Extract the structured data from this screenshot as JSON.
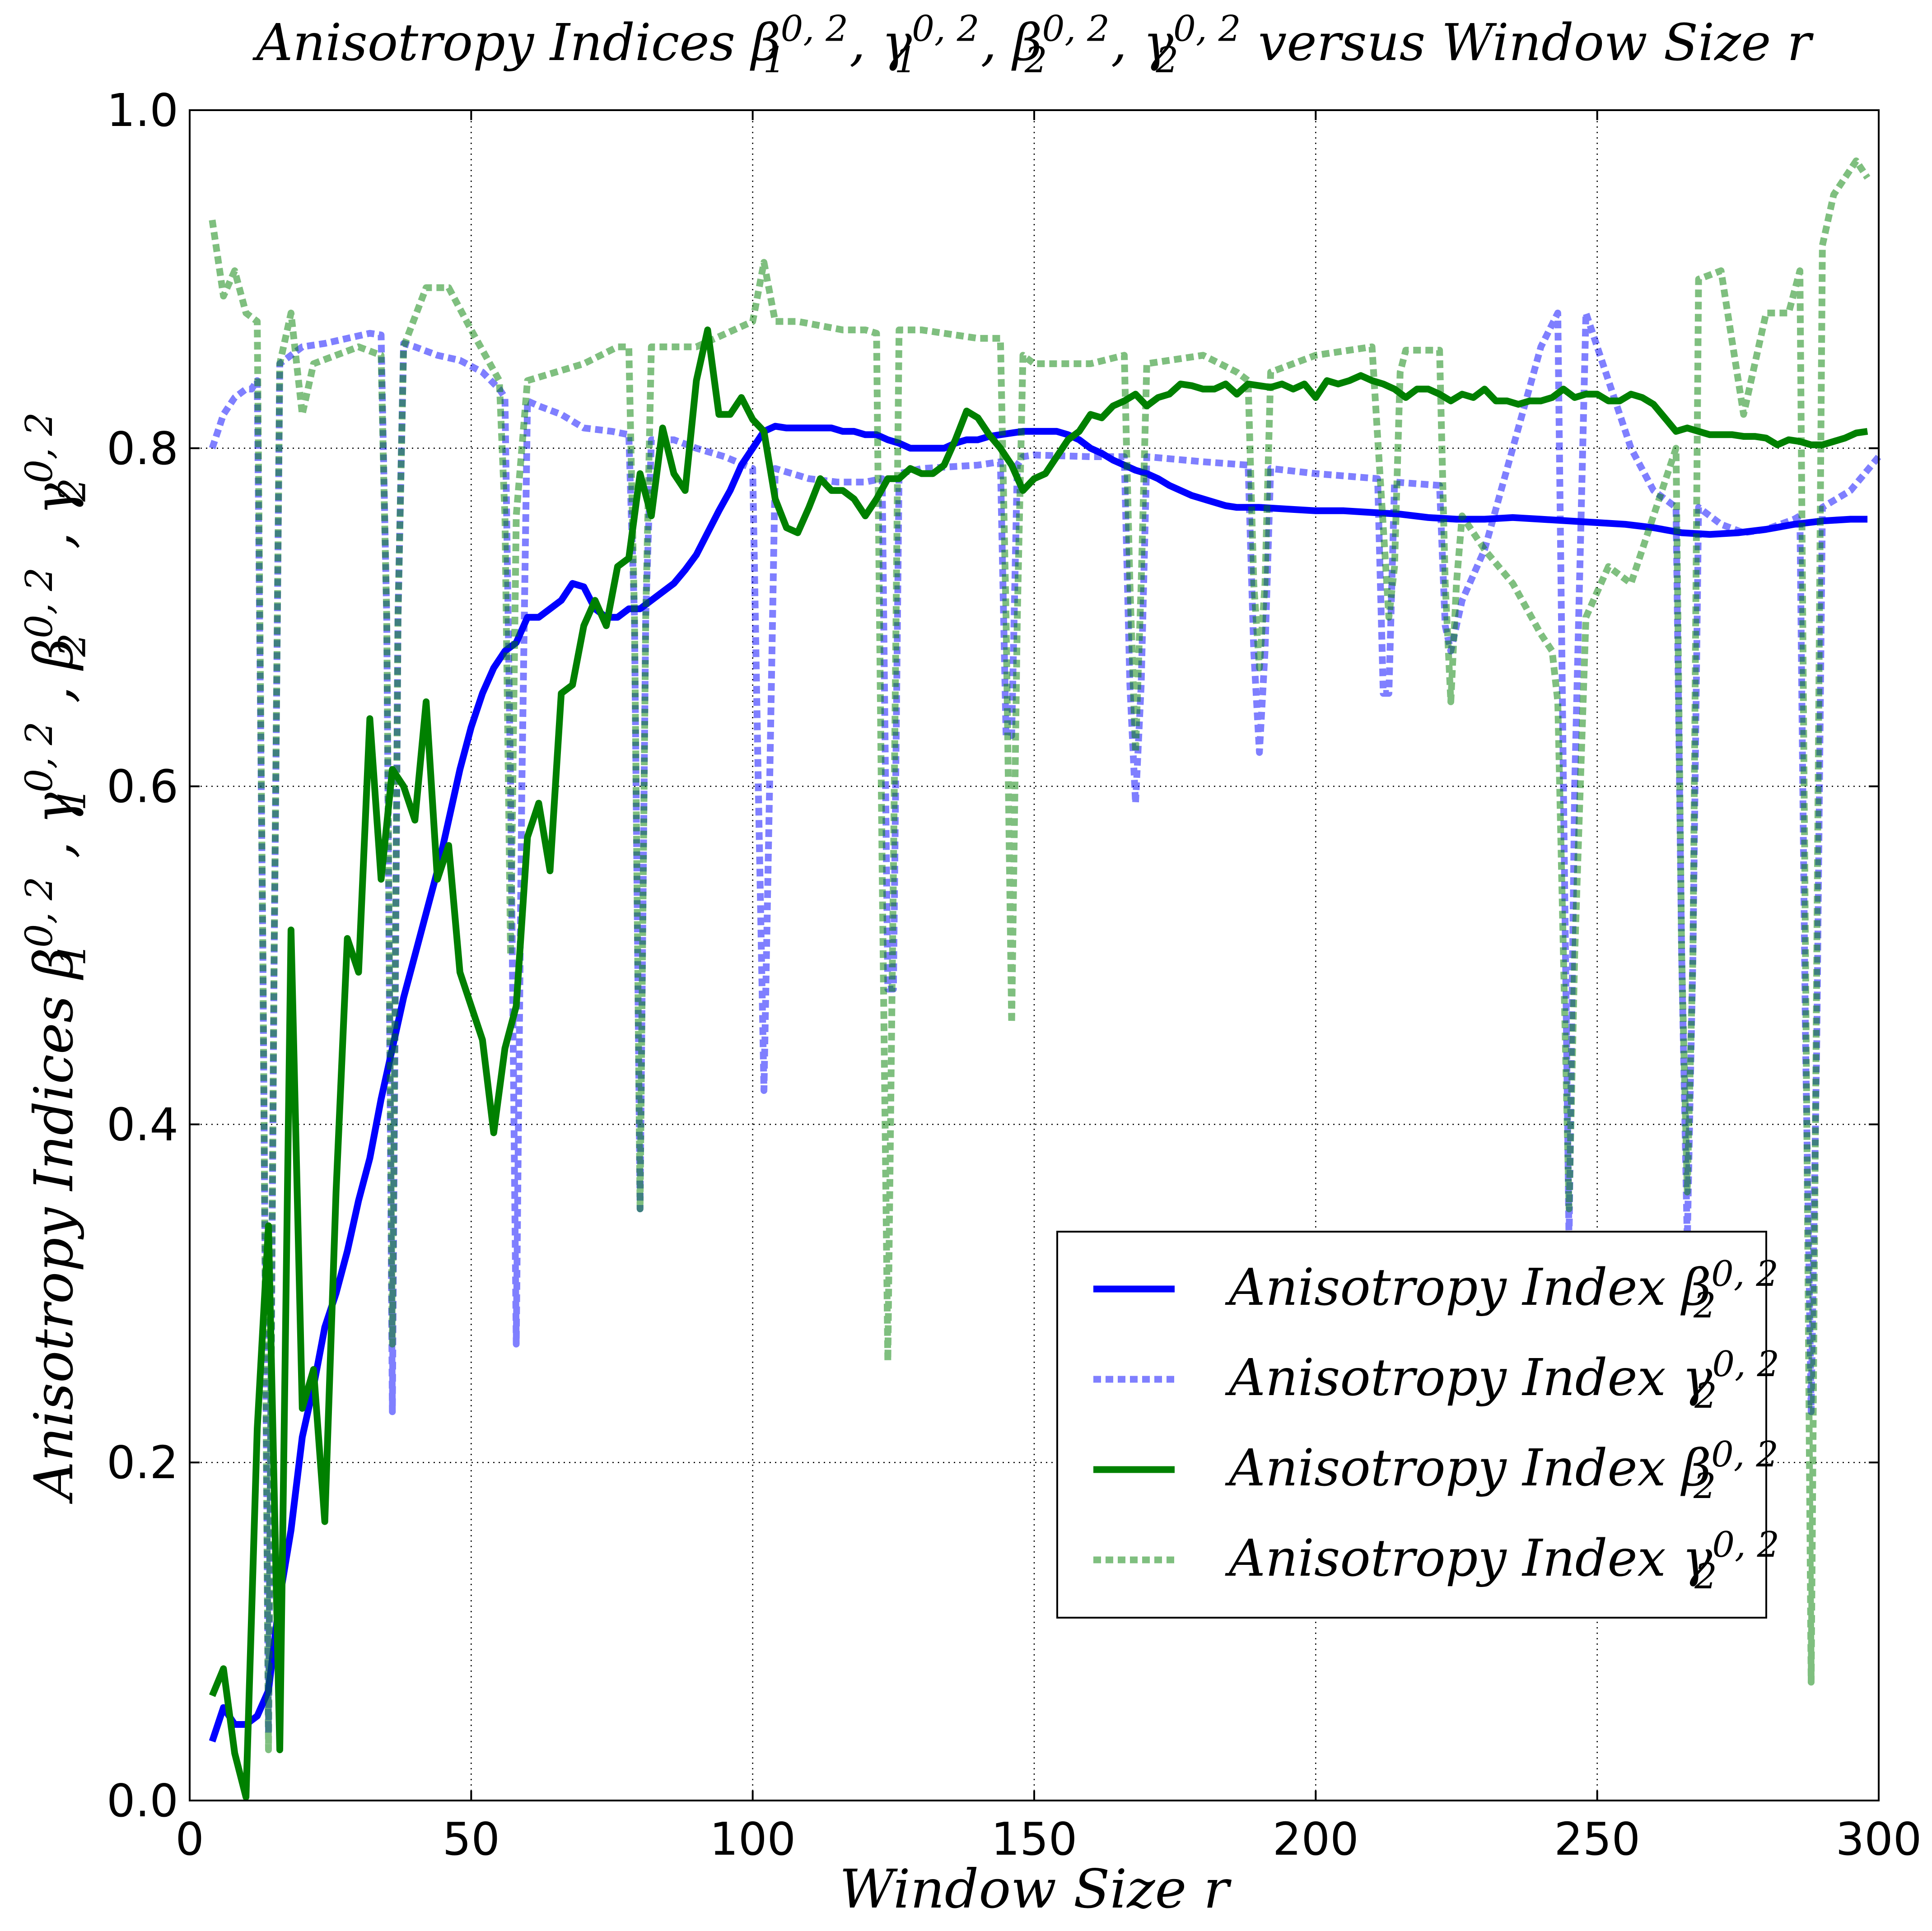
{
  "chart_data": {
    "type": "line",
    "title": {
      "main": "Anisotropy Indices β",
      "parts": [
        {
          "t": "Anisotropy Indices "
        },
        {
          "t": "β",
          "sub": "1",
          "sup": "0, 2"
        },
        {
          "t": ", "
        },
        {
          "t": "γ",
          "sub": "1",
          "sup": "0, 2"
        },
        {
          "t": ",  "
        },
        {
          "t": "β",
          "sub": "2",
          "sup": "0, 2"
        },
        {
          "t": ", "
        },
        {
          "t": "γ",
          "sub": "2",
          "sup": "0, 2"
        },
        {
          "t": " versus Window Size r"
        }
      ]
    },
    "xlabel": "Window Size r",
    "ylabel": {
      "parts": [
        {
          "t": "Anisotropy Indices "
        },
        {
          "t": "β",
          "sub": "1",
          "sup": "0, 2"
        },
        {
          "t": " ,  "
        },
        {
          "t": "γ",
          "sub": "1",
          "sup": "0, 2"
        },
        {
          "t": " ,  "
        },
        {
          "t": "β",
          "sub": "2",
          "sup": "0, 2"
        },
        {
          "t": " ,  "
        },
        {
          "t": "γ",
          "sub": "2",
          "sup": "0, 2"
        }
      ]
    },
    "xlim": [
      0,
      300
    ],
    "ylim": [
      0.0,
      1.0
    ],
    "xticks": [
      "0",
      "50",
      "100",
      "150",
      "200",
      "250",
      "300"
    ],
    "yticks": [
      "0.0",
      "0.2",
      "0.4",
      "0.6",
      "0.8",
      "1.0"
    ],
    "grid": true,
    "legend_position": "lower-right",
    "series": [
      {
        "name": "Anisotropy Index β",
        "legend_sub": "2",
        "legend_sup": "0, 2",
        "color": "#0000ff",
        "alpha": 1.0,
        "dashed": false,
        "x": [
          4,
          6,
          8,
          10,
          12,
          14,
          16,
          18,
          20,
          22,
          24,
          26,
          28,
          30,
          32,
          34,
          36,
          38,
          40,
          42,
          44,
          46,
          48,
          50,
          52,
          54,
          56,
          58,
          60,
          62,
          64,
          66,
          68,
          70,
          72,
          74,
          76,
          78,
          80,
          82,
          84,
          86,
          88,
          90,
          92,
          94,
          96,
          98,
          100,
          102,
          104,
          106,
          108,
          110,
          112,
          114,
          116,
          118,
          120,
          122,
          124,
          126,
          128,
          130,
          132,
          134,
          136,
          138,
          140,
          142,
          144,
          146,
          148,
          150,
          152,
          154,
          156,
          158,
          160,
          162,
          164,
          166,
          168,
          170,
          172,
          174,
          176,
          178,
          180,
          182,
          184,
          186,
          188,
          190,
          195,
          200,
          205,
          210,
          215,
          220,
          225,
          230,
          235,
          240,
          245,
          250,
          255,
          260,
          265,
          270,
          275,
          280,
          285,
          290,
          295,
          298
        ],
        "y": [
          0.035,
          0.055,
          0.045,
          0.045,
          0.05,
          0.065,
          0.12,
          0.16,
          0.215,
          0.245,
          0.28,
          0.3,
          0.325,
          0.355,
          0.38,
          0.415,
          0.445,
          0.475,
          0.5,
          0.525,
          0.55,
          0.58,
          0.61,
          0.635,
          0.655,
          0.67,
          0.68,
          0.685,
          0.7,
          0.7,
          0.705,
          0.71,
          0.72,
          0.718,
          0.705,
          0.7,
          0.7,
          0.705,
          0.705,
          0.71,
          0.715,
          0.72,
          0.728,
          0.737,
          0.75,
          0.763,
          0.775,
          0.79,
          0.8,
          0.81,
          0.813,
          0.812,
          0.812,
          0.812,
          0.812,
          0.812,
          0.81,
          0.81,
          0.808,
          0.808,
          0.805,
          0.803,
          0.8,
          0.8,
          0.8,
          0.8,
          0.803,
          0.805,
          0.805,
          0.807,
          0.808,
          0.809,
          0.81,
          0.81,
          0.81,
          0.81,
          0.808,
          0.805,
          0.8,
          0.797,
          0.793,
          0.79,
          0.787,
          0.785,
          0.782,
          0.778,
          0.775,
          0.772,
          0.77,
          0.768,
          0.766,
          0.765,
          0.765,
          0.765,
          0.764,
          0.763,
          0.763,
          0.762,
          0.761,
          0.759,
          0.758,
          0.758,
          0.759,
          0.758,
          0.757,
          0.756,
          0.755,
          0.753,
          0.75,
          0.749,
          0.75,
          0.752,
          0.755,
          0.757,
          0.758,
          0.758
        ]
      },
      {
        "name": "Anisotropy Index γ",
        "legend_sub": "2",
        "legend_sup": "0, 2",
        "color": "#0000ff",
        "alpha": 0.5,
        "dashed": true,
        "x": [
          4,
          6,
          8,
          10,
          11,
          12,
          13,
          14,
          15,
          16,
          18,
          20,
          24,
          28,
          32,
          34,
          35,
          36,
          37,
          38,
          40,
          44,
          48,
          52,
          55,
          56,
          57,
          58,
          59,
          60,
          62,
          66,
          70,
          75,
          78,
          79,
          80,
          81,
          82,
          86,
          90,
          95,
          100,
          101,
          102,
          103,
          104,
          110,
          115,
          120,
          123,
          124,
          125,
          126,
          130,
          140,
          144,
          145,
          146,
          147,
          148,
          150,
          160,
          166,
          167,
          168,
          169,
          170,
          180,
          188,
          189,
          190,
          191,
          192,
          200,
          211,
          212,
          213,
          214,
          222,
          223,
          224,
          225,
          226,
          230,
          235,
          240,
          243,
          244,
          245,
          246,
          248,
          252,
          256,
          260,
          264,
          265,
          266,
          267,
          268,
          272,
          276,
          280,
          285,
          286,
          287,
          288,
          289,
          290,
          295,
          300
        ],
        "y": [
          0.8,
          0.82,
          0.83,
          0.835,
          0.835,
          0.84,
          0.5,
          0.04,
          0.5,
          0.85,
          0.855,
          0.86,
          0.862,
          0.865,
          0.868,
          0.867,
          0.7,
          0.23,
          0.7,
          0.862,
          0.86,
          0.855,
          0.852,
          0.845,
          0.835,
          0.83,
          0.6,
          0.27,
          0.6,
          0.828,
          0.825,
          0.82,
          0.812,
          0.81,
          0.808,
          0.7,
          0.35,
          0.7,
          0.805,
          0.805,
          0.8,
          0.795,
          0.788,
          0.6,
          0.42,
          0.6,
          0.788,
          0.782,
          0.78,
          0.78,
          0.782,
          0.48,
          0.48,
          0.785,
          0.788,
          0.79,
          0.792,
          0.63,
          0.63,
          0.79,
          0.795,
          0.796,
          0.795,
          0.795,
          0.66,
          0.59,
          0.66,
          0.795,
          0.792,
          0.79,
          0.68,
          0.62,
          0.68,
          0.788,
          0.785,
          0.782,
          0.655,
          0.655,
          0.78,
          0.778,
          0.695,
          0.68,
          0.695,
          0.71,
          0.74,
          0.8,
          0.86,
          0.88,
          0.6,
          0.33,
          0.6,
          0.88,
          0.84,
          0.8,
          0.775,
          0.765,
          0.5,
          0.33,
          0.5,
          0.765,
          0.755,
          0.75,
          0.752,
          0.758,
          0.76,
          0.45,
          0.23,
          0.45,
          0.765,
          0.775,
          0.795
        ]
      },
      {
        "name": "Anisotropy Index β",
        "legend_sub": "2",
        "legend_sup": "0, 2",
        "color": "#008000",
        "alpha": 1.0,
        "dashed": false,
        "x": [
          4,
          6,
          8,
          10,
          12,
          14,
          16,
          18,
          20,
          22,
          24,
          26,
          28,
          30,
          32,
          34,
          36,
          38,
          40,
          42,
          44,
          46,
          48,
          50,
          52,
          54,
          56,
          58,
          60,
          62,
          64,
          66,
          68,
          70,
          72,
          74,
          76,
          78,
          80,
          82,
          84,
          86,
          88,
          90,
          92,
          94,
          96,
          98,
          100,
          102,
          104,
          106,
          108,
          110,
          112,
          114,
          116,
          118,
          120,
          122,
          124,
          126,
          128,
          130,
          132,
          134,
          136,
          138,
          140,
          142,
          144,
          146,
          148,
          150,
          152,
          154,
          156,
          158,
          160,
          162,
          164,
          166,
          168,
          170,
          172,
          174,
          176,
          178,
          180,
          182,
          184,
          186,
          188,
          190,
          192,
          194,
          196,
          198,
          200,
          202,
          204,
          206,
          208,
          210,
          212,
          214,
          216,
          218,
          220,
          222,
          224,
          226,
          228,
          230,
          232,
          234,
          236,
          238,
          240,
          242,
          244,
          246,
          248,
          250,
          252,
          254,
          256,
          258,
          260,
          262,
          264,
          266,
          268,
          270,
          272,
          274,
          276,
          278,
          280,
          282,
          284,
          286,
          288,
          290,
          292,
          294,
          296,
          298
        ],
        "y": [
          0.062,
          0.078,
          0.028,
          0.002,
          0.22,
          0.34,
          0.03,
          0.515,
          0.232,
          0.255,
          0.165,
          0.36,
          0.51,
          0.49,
          0.64,
          0.545,
          0.61,
          0.6,
          0.58,
          0.65,
          0.545,
          0.565,
          0.49,
          0.47,
          0.45,
          0.395,
          0.445,
          0.47,
          0.57,
          0.59,
          0.55,
          0.655,
          0.66,
          0.695,
          0.71,
          0.695,
          0.73,
          0.735,
          0.785,
          0.76,
          0.812,
          0.785,
          0.775,
          0.84,
          0.87,
          0.82,
          0.82,
          0.83,
          0.817,
          0.81,
          0.77,
          0.753,
          0.75,
          0.765,
          0.782,
          0.775,
          0.775,
          0.77,
          0.76,
          0.77,
          0.782,
          0.782,
          0.788,
          0.785,
          0.785,
          0.79,
          0.805,
          0.822,
          0.818,
          0.808,
          0.8,
          0.79,
          0.775,
          0.782,
          0.785,
          0.795,
          0.805,
          0.81,
          0.82,
          0.818,
          0.825,
          0.828,
          0.832,
          0.825,
          0.83,
          0.832,
          0.838,
          0.837,
          0.835,
          0.835,
          0.838,
          0.832,
          0.838,
          0.837,
          0.836,
          0.838,
          0.835,
          0.838,
          0.83,
          0.84,
          0.838,
          0.84,
          0.843,
          0.84,
          0.838,
          0.835,
          0.83,
          0.835,
          0.835,
          0.832,
          0.828,
          0.832,
          0.83,
          0.835,
          0.828,
          0.828,
          0.826,
          0.828,
          0.828,
          0.83,
          0.835,
          0.83,
          0.832,
          0.832,
          0.828,
          0.828,
          0.832,
          0.83,
          0.826,
          0.818,
          0.81,
          0.812,
          0.81,
          0.808,
          0.808,
          0.808,
          0.807,
          0.807,
          0.806,
          0.802,
          0.805,
          0.804,
          0.802,
          0.802,
          0.804,
          0.806,
          0.809,
          0.81
        ]
      },
      {
        "name": "Anisotropy Index γ",
        "legend_sub": "2",
        "legend_sup": "0, 2",
        "color": "#008000",
        "alpha": 0.5,
        "dashed": true,
        "x": [
          4,
          6,
          8,
          10,
          12,
          13,
          14,
          15,
          16,
          18,
          20,
          22,
          26,
          30,
          34,
          35,
          36,
          37,
          38,
          42,
          46,
          50,
          55,
          56,
          57,
          58,
          60,
          65,
          70,
          76,
          78,
          79,
          80,
          81,
          82,
          90,
          100,
          102,
          104,
          108,
          116,
          120,
          122,
          123,
          124,
          125,
          126,
          130,
          140,
          144,
          145,
          146,
          147,
          148,
          150,
          160,
          166,
          167,
          168,
          169,
          170,
          180,
          186,
          188,
          189,
          190,
          191,
          192,
          200,
          210,
          213,
          214,
          215,
          216,
          222,
          223,
          224,
          225,
          226,
          230,
          235,
          240,
          242,
          243,
          244,
          245,
          246,
          248,
          252,
          256,
          260,
          264,
          265,
          266,
          267,
          268,
          272,
          276,
          280,
          284,
          286,
          287,
          288,
          289,
          290,
          292,
          296,
          298
        ],
        "y": [
          0.935,
          0.89,
          0.905,
          0.88,
          0.875,
          0.5,
          0.03,
          0.5,
          0.85,
          0.88,
          0.82,
          0.85,
          0.855,
          0.86,
          0.855,
          0.7,
          0.27,
          0.7,
          0.86,
          0.895,
          0.895,
          0.87,
          0.84,
          0.76,
          0.5,
          0.76,
          0.84,
          0.845,
          0.85,
          0.86,
          0.86,
          0.7,
          0.35,
          0.7,
          0.86,
          0.86,
          0.875,
          0.91,
          0.875,
          0.875,
          0.87,
          0.87,
          0.868,
          0.55,
          0.26,
          0.55,
          0.87,
          0.87,
          0.865,
          0.865,
          0.7,
          0.46,
          0.7,
          0.855,
          0.85,
          0.85,
          0.855,
          0.72,
          0.62,
          0.72,
          0.85,
          0.855,
          0.845,
          0.84,
          0.72,
          0.67,
          0.72,
          0.845,
          0.855,
          0.86,
          0.7,
          0.73,
          0.845,
          0.858,
          0.858,
          0.72,
          0.65,
          0.72,
          0.76,
          0.74,
          0.72,
          0.69,
          0.68,
          0.65,
          0.5,
          0.35,
          0.5,
          0.7,
          0.73,
          0.72,
          0.76,
          0.8,
          0.5,
          0.36,
          0.5,
          0.9,
          0.905,
          0.82,
          0.88,
          0.88,
          0.905,
          0.5,
          0.07,
          0.5,
          0.92,
          0.95,
          0.97,
          0.96
        ]
      }
    ]
  }
}
